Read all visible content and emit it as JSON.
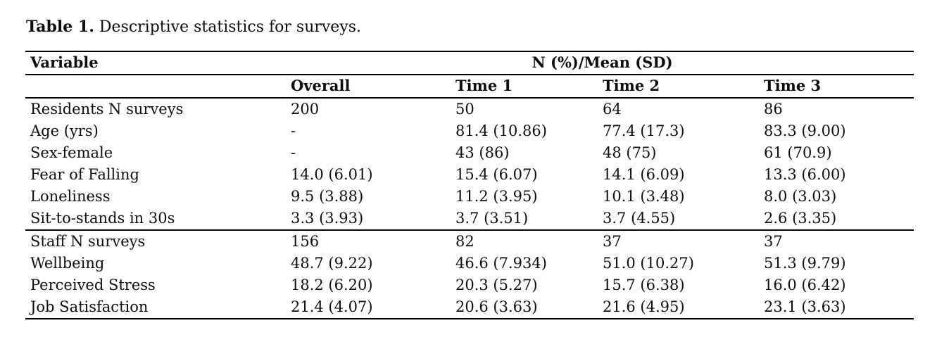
{
  "title": {
    "label": "Table 1.",
    "text": "Descriptive statistics for surveys."
  },
  "table": {
    "variable_header": "Variable",
    "group_header": "N (%)/Mean (SD)",
    "columns": [
      "Overall",
      "Time 1",
      "Time 2",
      "Time 3"
    ],
    "sections": [
      {
        "name": "residents",
        "rows": [
          {
            "variable": "Residents N surveys",
            "values": [
              "200",
              "50",
              "64",
              "86"
            ]
          },
          {
            "variable": "Age (yrs)",
            "values": [
              "-",
              "81.4 (10.86)",
              "77.4 (17.3)",
              "83.3 (9.00)"
            ]
          },
          {
            "variable": "Sex-female",
            "values": [
              "-",
              "43 (86)",
              "48 (75)",
              "61 (70.9)"
            ]
          },
          {
            "variable": "Fear of Falling",
            "values": [
              "14.0 (6.01)",
              "15.4 (6.07)",
              "14.1 (6.09)",
              "13.3 (6.00)"
            ]
          },
          {
            "variable": "Loneliness",
            "values": [
              "9.5 (3.88)",
              "11.2 (3.95)",
              "10.1 (3.48)",
              "8.0 (3.03)"
            ]
          },
          {
            "variable": "Sit-to-stands in 30s",
            "values": [
              "3.3 (3.93)",
              "3.7 (3.51)",
              "3.7 (4.55)",
              "2.6 (3.35)"
            ]
          }
        ]
      },
      {
        "name": "staff",
        "rows": [
          {
            "variable": "Staff N surveys",
            "values": [
              "156",
              "82",
              "37",
              "37"
            ]
          },
          {
            "variable": "Wellbeing",
            "values": [
              "48.7 (9.22)",
              "46.6 (7.934)",
              "51.0 (10.27)",
              "51.3 (9.79)"
            ]
          },
          {
            "variable": "Perceived Stress",
            "values": [
              "18.2 (6.20)",
              "20.3 (5.27)",
              "15.7 (6.38)",
              "16.0 (6.42)"
            ]
          },
          {
            "variable": "Job Satisfaction",
            "values": [
              "21.4 (4.07)",
              "20.6 (3.63)",
              "21.6 (4.95)",
              "23.1 (3.63)"
            ]
          }
        ]
      }
    ]
  },
  "colors": {
    "text": "#0d0d0d",
    "rule": "#000000",
    "background": "#ffffff"
  }
}
